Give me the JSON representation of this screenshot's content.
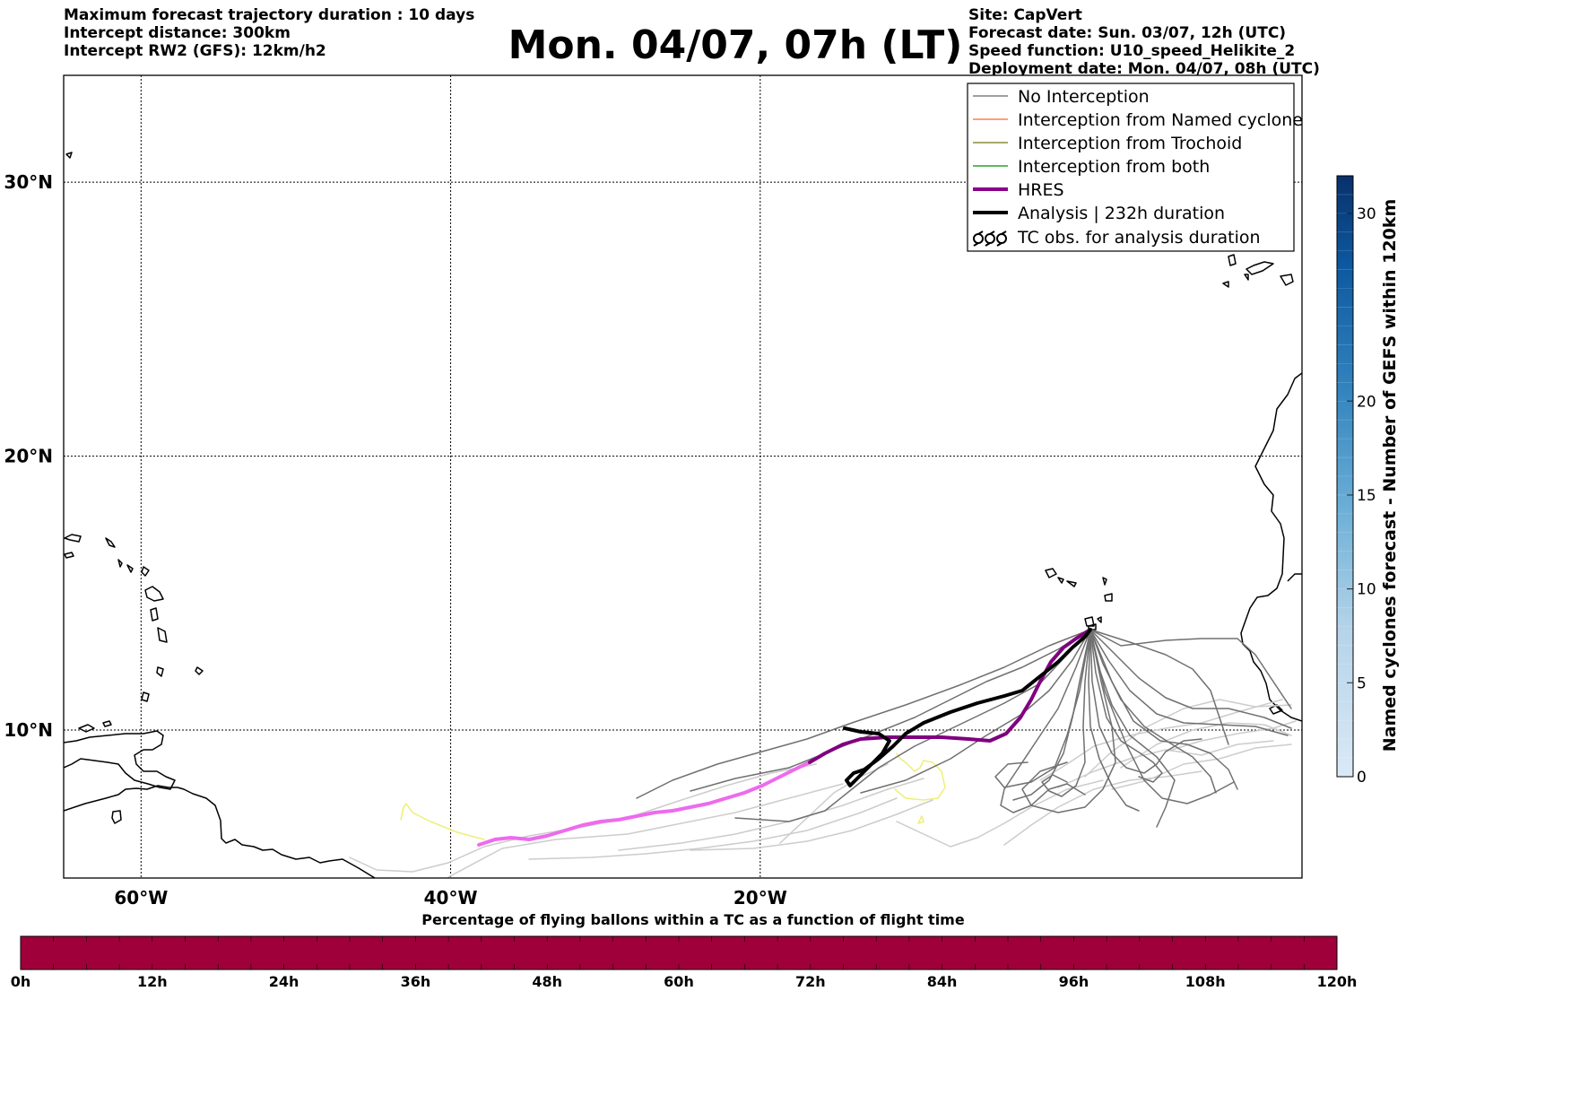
{
  "title": "Mon. 04/07, 07h (LT)",
  "header_left": [
    "Maximum forecast trajectory duration : 10 days",
    "Intercept distance: 300km",
    "Intercept RW2 (GFS):  12km/h2"
  ],
  "header_right": [
    "Site: CapVert",
    "Forecast date: Sun. 03/07, 12h (UTC)",
    "Speed function: U10_speed_Helikite_2",
    "Deployment date: Mon. 04/07, 08h (UTC)"
  ],
  "map": {
    "lon_range": [
      -65,
      15
    ],
    "lat_range": [
      4.6,
      33.9
    ],
    "lon_ticks": [
      {
        "value": -60,
        "label": "60°W"
      },
      {
        "value": -40,
        "label": "40°W"
      },
      {
        "value": -20,
        "label": "20°W"
      }
    ],
    "lat_ticks": [
      {
        "value": 30,
        "label": "30°N"
      },
      {
        "value": 20,
        "label": "20°N"
      },
      {
        "value": 10,
        "label": "10°N"
      }
    ],
    "grid": true
  },
  "legend": {
    "placement": "top-right",
    "items": [
      {
        "label": "No Interception",
        "color": "#808080",
        "style": "thin-line"
      },
      {
        "label": "Interception from Named cyclone",
        "color": "#ff7f50",
        "style": "thin-line"
      },
      {
        "label": "Interception from Trochoid",
        "color": "#8b8b3a",
        "style": "thin-line"
      },
      {
        "label": "Interception from both",
        "color": "#2ca02c",
        "style": "thin-line"
      },
      {
        "label": "HRES",
        "color": "#8b008b",
        "style": "thick-line"
      },
      {
        "label": "Analysis | 232h duration",
        "color": "#000000",
        "style": "thick-line"
      },
      {
        "label": "TC obs. for analysis duration",
        "color": "#000000",
        "style": "cyclone-symbols"
      }
    ]
  },
  "colorbar_right": {
    "label": "Named cyclones forecast - Number of GEFS within 120km",
    "ticks": [
      "0",
      "5",
      "10",
      "15",
      "20",
      "30"
    ],
    "color_low": "#dbe9f6",
    "color_high": "#08306b"
  },
  "colorbar_bottom": {
    "title": "Percentage of flying ballons within a TC as a function of flight time",
    "color": "#a0003a",
    "ticks": [
      "0h",
      "12h",
      "24h",
      "36h",
      "48h",
      "60h",
      "72h",
      "84h",
      "96h",
      "108h",
      "120h"
    ]
  },
  "colors": {
    "ensemble_dark": "#707070",
    "ensemble_light": "#cccccc",
    "hres_late": "#800080",
    "hres_early": "#ee6aee",
    "analysis": "#000000",
    "tc_obs": "#eeee77"
  }
}
